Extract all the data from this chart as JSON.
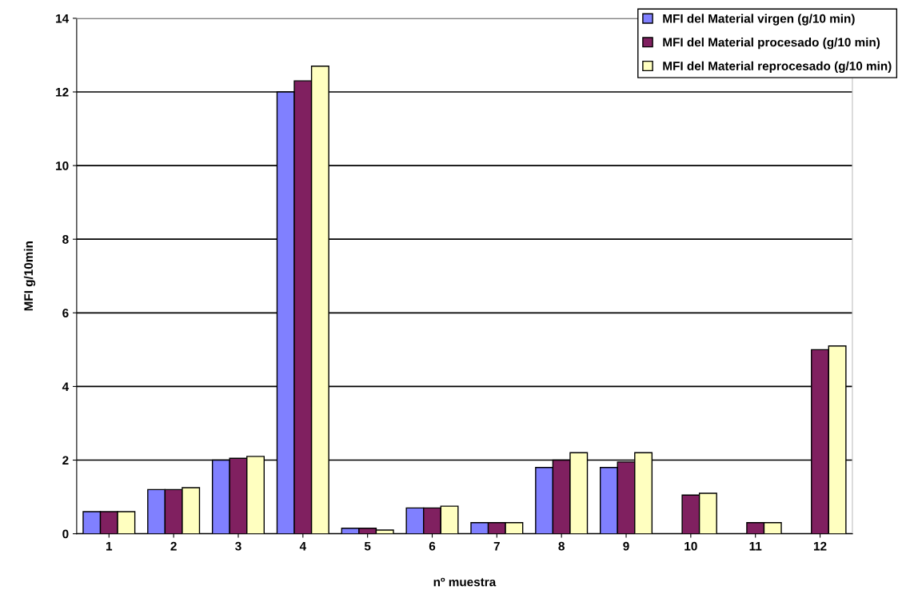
{
  "chart_data": {
    "type": "bar",
    "xlabel": "nº muestra",
    "ylabel": "MFI g/10min",
    "categories": [
      "1",
      "2",
      "3",
      "4",
      "5",
      "6",
      "7",
      "8",
      "9",
      "10",
      "11",
      "12"
    ],
    "series": [
      {
        "name": "MFI del Material virgen (g/10 min)",
        "color": "#8080ff",
        "values": [
          0.6,
          1.2,
          2.0,
          12.0,
          0.15,
          0.7,
          0.3,
          1.8,
          1.8,
          null,
          null,
          null
        ]
      },
      {
        "name": "MFI del Material procesado (g/10 min)",
        "color": "#802060",
        "values": [
          0.6,
          1.2,
          2.05,
          12.3,
          0.15,
          0.7,
          0.3,
          2.0,
          1.95,
          1.05,
          0.3,
          5.0
        ]
      },
      {
        "name": "MFI del Material reprocesado (g/10 min)",
        "color": "#ffffc0",
        "values": [
          0.6,
          1.25,
          2.1,
          12.7,
          0.1,
          0.75,
          0.3,
          2.2,
          2.2,
          1.1,
          0.3,
          5.1
        ]
      }
    ],
    "ylim": [
      0,
      14
    ],
    "yticks": [
      0,
      2,
      4,
      6,
      8,
      10,
      12,
      14
    ],
    "grid": "y",
    "legend": "top right"
  }
}
